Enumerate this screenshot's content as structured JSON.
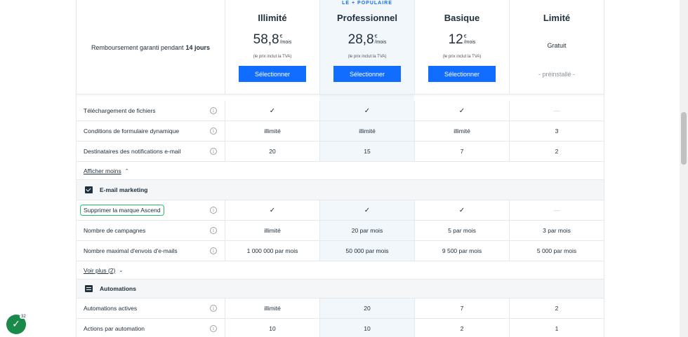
{
  "header": {
    "guarantee_text": "Remboursement garanti pendant",
    "guarantee_bold": "14 jours",
    "popular_tag": "LE + POPULAIRE",
    "plans": [
      {
        "name": "Illimité",
        "price": "58,8",
        "currency": "€",
        "per": "/mois",
        "tva": "(le prix inclut la TVA)",
        "button": "Sélectionner"
      },
      {
        "name": "Professionnel",
        "price": "28,8",
        "currency": "€",
        "per": "/mois",
        "tva": "(le prix inclut la TVA)",
        "button": "Sélectionner"
      },
      {
        "name": "Basique",
        "price": "12",
        "currency": "€",
        "per": "/mois",
        "tva": "(le prix inclut la TVA)",
        "button": "Sélectionner"
      },
      {
        "name": "Limité",
        "free_label": "Gratuit",
        "preinstalled": "- préinstallé -"
      }
    ]
  },
  "forms_rows": [
    {
      "label": "Téléchargement de fichiers",
      "values": [
        "✓",
        "✓",
        "✓",
        "—"
      ]
    },
    {
      "label": "Conditions de formulaire dynamique",
      "values": [
        "illimité",
        "illimité",
        "illimité",
        "3"
      ]
    },
    {
      "label": "Destinataires des notifications e-mail",
      "values": [
        "20",
        "15",
        "7",
        "2"
      ]
    }
  ],
  "show_less": "Afficher moins",
  "email_section": {
    "title": "E-mail marketing",
    "icon": "mail-icon",
    "rows": [
      {
        "label": "Supprimer la marque Ascend",
        "values": [
          "✓",
          "✓",
          "✓",
          "—"
        ]
      },
      {
        "label": "Nombre de campagnes",
        "values": [
          "illimité",
          "20 par mois",
          "5 par mois",
          "3 par mois"
        ]
      },
      {
        "label": "Nombre maximal d'envois d'e-mails",
        "values": [
          "1 000 000 par mois",
          "50 000 par mois",
          "9 500 par mois",
          "5 000 par mois"
        ]
      }
    ],
    "show_more": "Voir plus (2)"
  },
  "automations_section": {
    "title": "Automations",
    "icon": "chat-icon",
    "rows": [
      {
        "label": "Automations actives",
        "values": [
          "illimité",
          "20",
          "7",
          "2"
        ]
      },
      {
        "label": "Actions par automation",
        "values": [
          "10",
          "10",
          "2",
          "1"
        ]
      }
    ]
  },
  "badge": {
    "count": "32"
  },
  "colors": {
    "accent": "#116dff",
    "highlight": "#25c16f",
    "popular_bg": "#f2f7fc"
  }
}
